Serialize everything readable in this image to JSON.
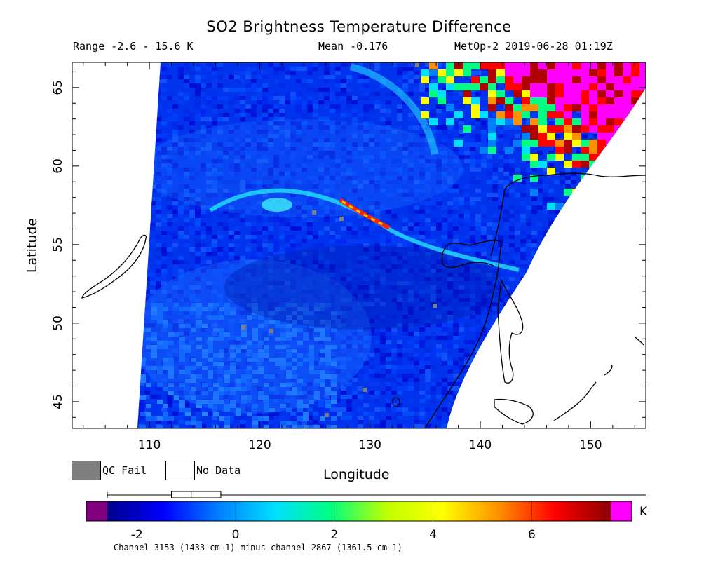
{
  "header": {
    "title": "SO2 Brightness Temperature Difference",
    "range": "Range -2.6 - 15.6 K",
    "mean": "Mean -0.176",
    "satellite_time": "MetOp-2 2019-06-28 01:19Z"
  },
  "axes": {
    "xlabel": "Longitude",
    "ylabel": "Latitude",
    "x_ticks": [
      "110",
      "120",
      "130",
      "140",
      "150"
    ],
    "y_ticks": [
      "45",
      "50",
      "55",
      "60",
      "65"
    ],
    "x_range": [
      103,
      155
    ],
    "y_range": [
      43.3,
      66.6
    ]
  },
  "legend": {
    "qc_fail_label": "QC Fail",
    "no_data_label": "No Data",
    "qc_fail_color": "#7f7f7f",
    "no_data_color": "#ffffff"
  },
  "colorbar": {
    "range": [
      -2.6,
      7.6
    ],
    "tick_labels": [
      "-2",
      "0",
      "2",
      "4",
      "6"
    ],
    "tick_values": [
      -2,
      0,
      2,
      4,
      6
    ],
    "unit": "K",
    "stats_box": {
      "min": -2.6,
      "q1": -1.3,
      "median": -0.9,
      "q3": -0.3
    },
    "under_color": "#800080",
    "over_color": "#ff00ff",
    "colors": [
      "#00008b",
      "#0000ff",
      "#0080ff",
      "#00e0ff",
      "#00ff80",
      "#c0ff00",
      "#ffff00",
      "#ff9000",
      "#ff0000",
      "#8b0000"
    ]
  },
  "footnote": "Channel 3153 (1433 cm-1) minus channel 2867 (1361.5 cm-1)"
}
